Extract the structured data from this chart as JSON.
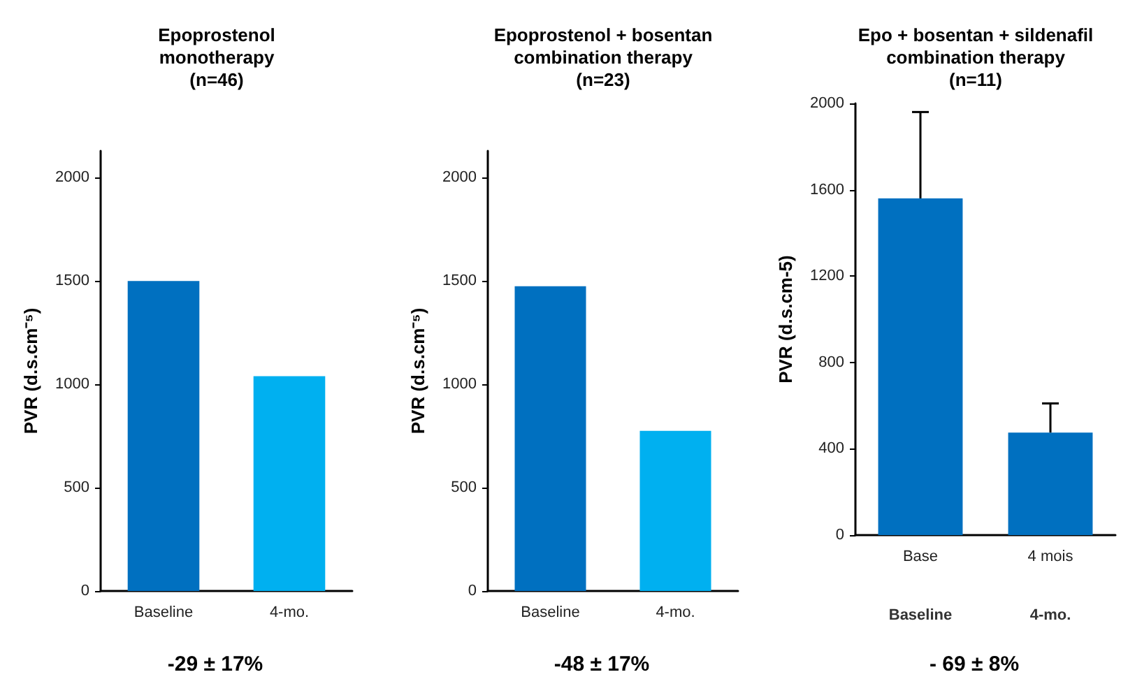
{
  "chart_data": [
    {
      "type": "bar",
      "title": "Epoprostenol\nmonotherapy\n(n=46)",
      "ylabel": "PVR (d.s.cm⁻⁵)",
      "categories": [
        "Baseline",
        "4-mo."
      ],
      "values": [
        1500,
        1040
      ],
      "colors": [
        "#0070c0",
        "#00b0f0"
      ],
      "ylim": [
        0,
        2130
      ],
      "yticks": [
        0,
        500,
        1000,
        1500,
        2000
      ],
      "annotations": [
        "-29 ± 17%"
      ]
    },
    {
      "type": "bar",
      "title": "Epoprostenol + bosentan\ncombination therapy\n(n=23)",
      "ylabel": "PVR (d.s.cm⁻⁵)",
      "categories": [
        "Baseline",
        "4-mo."
      ],
      "values": [
        1475,
        775
      ],
      "colors": [
        "#0070c0",
        "#00b0f0"
      ],
      "ylim": [
        0,
        2130
      ],
      "yticks": [
        0,
        500,
        1000,
        1500,
        2000
      ],
      "annotations": [
        "-48 ± 17%"
      ]
    },
    {
      "type": "bar",
      "title": "Epo + bosentan + sildenafil\ncombination therapy\n(n=11)",
      "ylabel": "PVR (d.s.cm-5)",
      "categories": [
        "Base",
        "4 mois"
      ],
      "values": [
        1560,
        475
      ],
      "colors": [
        "#0070c0",
        "#0070c0"
      ],
      "errors": [
        [
          1560,
          1960
        ],
        [
          475,
          610
        ]
      ],
      "ylim": [
        0,
        2000
      ],
      "yticks": [
        0,
        400,
        800,
        1200,
        1600,
        2000
      ],
      "annotations": [
        "Baseline",
        "4-mo.",
        "- 69 ± 8%"
      ]
    }
  ]
}
